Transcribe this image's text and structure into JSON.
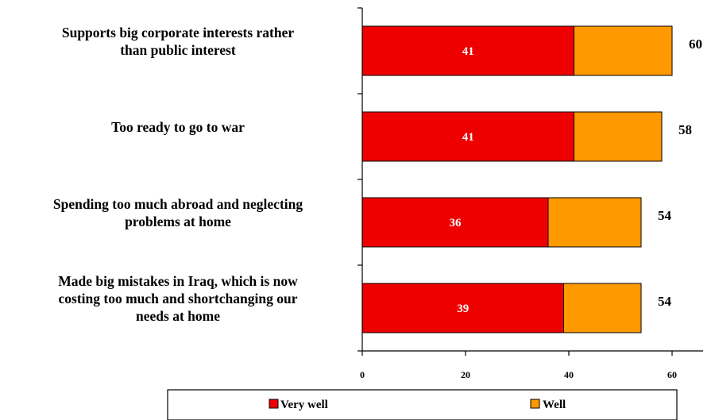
{
  "chart_data": {
    "type": "bar",
    "orientation": "horizontal",
    "stacked": true,
    "title": "",
    "xlabel": "",
    "ylabel": "",
    "categories": [
      [
        "Supports big corporate interests rather",
        "than public interest"
      ],
      [
        "Too ready to go to war"
      ],
      [
        "Spending too much abroad and neglecting",
        "problems at home"
      ],
      [
        "Made big mistakes in Iraq, which is now",
        "costing too much and shortchanging our",
        "needs at home"
      ]
    ],
    "series": [
      {
        "name": "Very well",
        "values": [
          41,
          41,
          36,
          39
        ],
        "color": "#ee0000"
      },
      {
        "name": "Well",
        "values": [
          19,
          17,
          18,
          15
        ],
        "color": "#ff9900"
      }
    ],
    "segment_labels": [
      "41",
      "41",
      "36",
      "39"
    ],
    "totals": [
      "60",
      "58",
      "54",
      "54"
    ],
    "xticks": [
      0,
      20,
      40,
      60
    ],
    "xlim": [
      0,
      65
    ],
    "grid": false,
    "legend_position": "bottom"
  }
}
